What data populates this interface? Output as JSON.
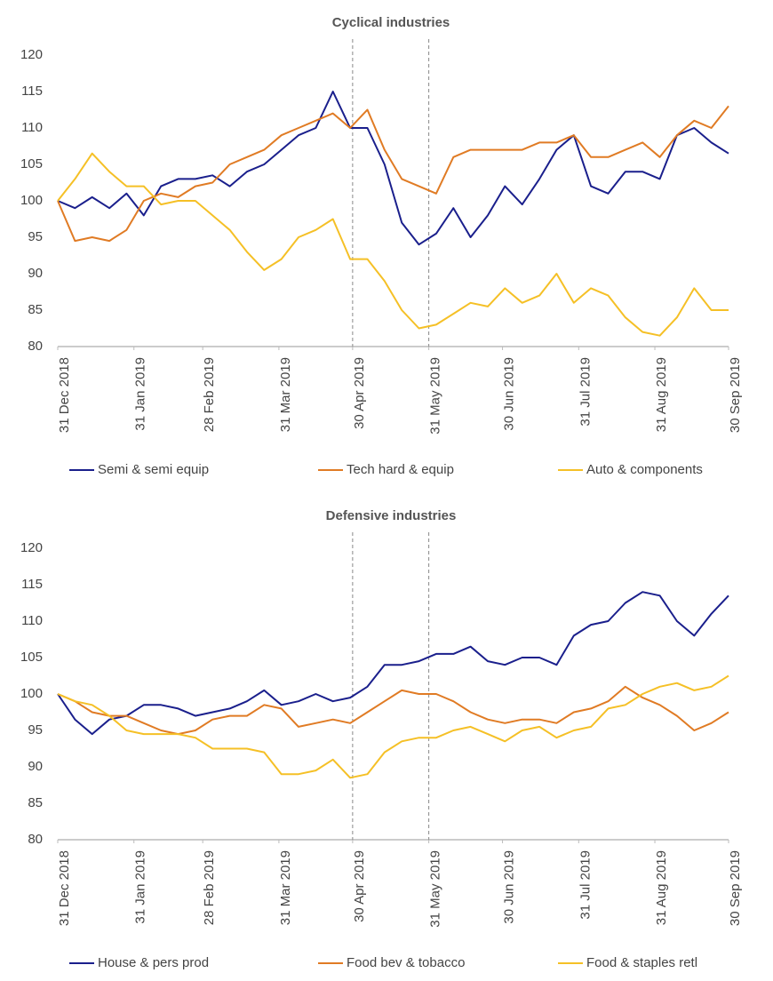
{
  "chart_data": [
    {
      "type": "line",
      "title": "Cyclical industries",
      "x": [
        "2018-12-31",
        "2019-01-07",
        "2019-01-14",
        "2019-01-21",
        "2019-01-28",
        "2019-02-04",
        "2019-02-11",
        "2019-02-18",
        "2019-02-25",
        "2019-03-04",
        "2019-03-11",
        "2019-03-18",
        "2019-03-25",
        "2019-04-01",
        "2019-04-08",
        "2019-04-15",
        "2019-04-22",
        "2019-04-29",
        "2019-05-06",
        "2019-05-13",
        "2019-05-20",
        "2019-05-27",
        "2019-06-03",
        "2019-06-10",
        "2019-06-17",
        "2019-06-24",
        "2019-07-01",
        "2019-07-08",
        "2019-07-15",
        "2019-07-22",
        "2019-07-29",
        "2019-08-05",
        "2019-08-12",
        "2019-08-19",
        "2019-08-26",
        "2019-09-02",
        "2019-09-09",
        "2019-09-16",
        "2019-09-23",
        "2019-09-30"
      ],
      "xlim": [
        "2018-12-31",
        "2019-09-30"
      ],
      "xticks": [
        {
          "value": "2018-12-31",
          "label": "31 Dec 2018"
        },
        {
          "value": "2019-01-31",
          "label": "31 Jan 2019"
        },
        {
          "value": "2019-02-28",
          "label": "28 Feb 2019"
        },
        {
          "value": "2019-03-31",
          "label": "31 Mar 2019"
        },
        {
          "value": "2019-04-30",
          "label": "30 Apr 2019"
        },
        {
          "value": "2019-05-31",
          "label": "31 May 2019"
        },
        {
          "value": "2019-06-30",
          "label": "30 Jun 2019"
        },
        {
          "value": "2019-07-31",
          "label": "31 Jul 2019"
        },
        {
          "value": "2019-08-31",
          "label": "31 Aug 2019"
        },
        {
          "value": "2019-09-30",
          "label": "30 Sep 2019"
        }
      ],
      "ylim": [
        80,
        120
      ],
      "yticks": [
        80,
        85,
        90,
        95,
        100,
        105,
        110,
        115,
        120
      ],
      "grid": false,
      "vlines": [
        "2019-04-30",
        "2019-05-31"
      ],
      "series": [
        {
          "name": "Semi & semi equip",
          "color": "#1a1f8c",
          "values": [
            100,
            99,
            100.5,
            99,
            101,
            98,
            102,
            103,
            103,
            103.5,
            102,
            104,
            105,
            107,
            109,
            110,
            115,
            110,
            110,
            105,
            97,
            94,
            95.5,
            99,
            95,
            98,
            102,
            99.5,
            103,
            107,
            109,
            102,
            101,
            104,
            104,
            103,
            109,
            110,
            108,
            106.5
          ]
        },
        {
          "name": "Tech hard & equip",
          "color": "#e07b24",
          "values": [
            100,
            94.5,
            95,
            94.5,
            96,
            100,
            101,
            100.5,
            102,
            102.5,
            105,
            106,
            107,
            109,
            110,
            111,
            112,
            110,
            112.5,
            107,
            103,
            102,
            101,
            106,
            107,
            107,
            107,
            107,
            108,
            108,
            109,
            106,
            106,
            107,
            108,
            106,
            109,
            111,
            110,
            113
          ]
        },
        {
          "name": "Auto & components",
          "color": "#f5c026",
          "values": [
            100,
            103,
            106.5,
            104,
            102,
            102,
            99.5,
            100,
            100,
            98,
            96,
            93,
            90.5,
            92,
            95,
            96,
            97.5,
            92,
            92,
            89,
            85,
            82.5,
            83,
            84.5,
            86,
            85.5,
            88,
            86,
            87,
            90,
            86,
            88,
            87,
            84,
            82,
            81.5,
            84,
            88,
            85,
            85
          ]
        }
      ]
    },
    {
      "type": "line",
      "title": "Defensive industries",
      "x": [
        "2018-12-31",
        "2019-01-07",
        "2019-01-14",
        "2019-01-21",
        "2019-01-28",
        "2019-02-04",
        "2019-02-11",
        "2019-02-18",
        "2019-02-25",
        "2019-03-04",
        "2019-03-11",
        "2019-03-18",
        "2019-03-25",
        "2019-04-01",
        "2019-04-08",
        "2019-04-15",
        "2019-04-22",
        "2019-04-29",
        "2019-05-06",
        "2019-05-13",
        "2019-05-20",
        "2019-05-27",
        "2019-06-03",
        "2019-06-10",
        "2019-06-17",
        "2019-06-24",
        "2019-07-01",
        "2019-07-08",
        "2019-07-15",
        "2019-07-22",
        "2019-07-29",
        "2019-08-05",
        "2019-08-12",
        "2019-08-19",
        "2019-08-26",
        "2019-09-02",
        "2019-09-09",
        "2019-09-16",
        "2019-09-23",
        "2019-09-30"
      ],
      "xlim": [
        "2018-12-31",
        "2019-09-30"
      ],
      "xticks": [
        {
          "value": "2018-12-31",
          "label": "31 Dec 2018"
        },
        {
          "value": "2019-01-31",
          "label": "31 Jan 2019"
        },
        {
          "value": "2019-02-28",
          "label": "28 Feb 2019"
        },
        {
          "value": "2019-03-31",
          "label": "31 Mar 2019"
        },
        {
          "value": "2019-04-30",
          "label": "30 Apr 2019"
        },
        {
          "value": "2019-05-31",
          "label": "31 May 2019"
        },
        {
          "value": "2019-06-30",
          "label": "30 Jun 2019"
        },
        {
          "value": "2019-07-31",
          "label": "31 Jul 2019"
        },
        {
          "value": "2019-08-31",
          "label": "31 Aug 2019"
        },
        {
          "value": "2019-09-30",
          "label": "30 Sep 2019"
        }
      ],
      "ylim": [
        80,
        120
      ],
      "yticks": [
        80,
        85,
        90,
        95,
        100,
        105,
        110,
        115,
        120
      ],
      "grid": false,
      "vlines": [
        "2019-04-30",
        "2019-05-31"
      ],
      "series": [
        {
          "name": "House & pers prod",
          "color": "#1a1f8c",
          "values": [
            100,
            96.5,
            94.5,
            96.5,
            97,
            98.5,
            98.5,
            98,
            97,
            97.5,
            98,
            99,
            100.5,
            98.5,
            99,
            100,
            99,
            99.5,
            101,
            104,
            104,
            104.5,
            105.5,
            105.5,
            106.5,
            104.5,
            104,
            105,
            105,
            104,
            108,
            109.5,
            110,
            112.5,
            114,
            113.5,
            110,
            108,
            111,
            113.5
          ]
        },
        {
          "name": "Food bev & tobacco",
          "color": "#e07b24",
          "values": [
            100,
            99,
            97.5,
            97,
            97,
            96,
            95,
            94.5,
            95,
            96.5,
            97,
            97,
            98.5,
            98,
            95.5,
            96,
            96.5,
            96,
            97.5,
            99,
            100.5,
            100,
            100,
            99,
            97.5,
            96.5,
            96,
            96.5,
            96.5,
            96,
            97.5,
            98,
            99,
            101,
            99.5,
            98.5,
            97,
            95,
            96,
            97.5
          ]
        },
        {
          "name": "Food & staples retl",
          "color": "#f5c026",
          "values": [
            100,
            99,
            98.5,
            97,
            95,
            94.5,
            94.5,
            94.5,
            94,
            92.5,
            92.5,
            92.5,
            92,
            89,
            89,
            89.5,
            91,
            88.5,
            89,
            92,
            93.5,
            94,
            94,
            95,
            95.5,
            94.5,
            93.5,
            95,
            95.5,
            94,
            95,
            95.5,
            98,
            98.5,
            100,
            101,
            101.5,
            100.5,
            101,
            102.5
          ]
        }
      ]
    }
  ]
}
